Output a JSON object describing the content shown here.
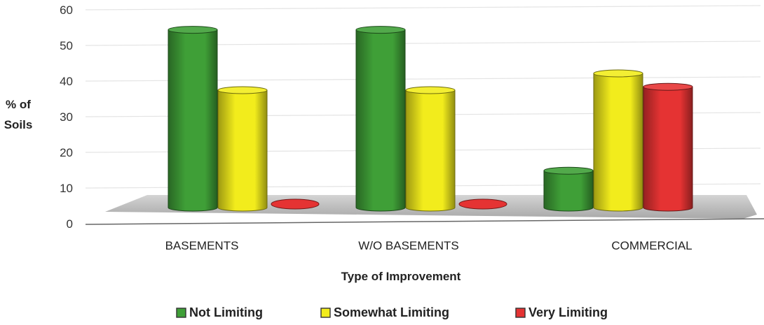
{
  "chart_data": {
    "type": "bar",
    "title": "",
    "xlabel": "Type of Improvement",
    "ylabel_lines": [
      "% of",
      "Soils"
    ],
    "ylim": [
      0,
      60
    ],
    "yticks": [
      0,
      10,
      20,
      30,
      40,
      50,
      60
    ],
    "grid": true,
    "legend_position": "bottom",
    "categories": [
      "BASEMENTS",
      "W/O BASEMENTS",
      "COMMERCIAL"
    ],
    "series": [
      {
        "name": "Not Limiting",
        "color": "#3f9f37",
        "values": [
          53,
          53,
          11
        ]
      },
      {
        "name": "Somewhat Limiting",
        "color": "#f2ec1c",
        "values": [
          35,
          35,
          40
        ]
      },
      {
        "name": "Very Limiting",
        "color": "#e53333",
        "values": [
          0,
          0,
          36
        ]
      }
    ]
  }
}
